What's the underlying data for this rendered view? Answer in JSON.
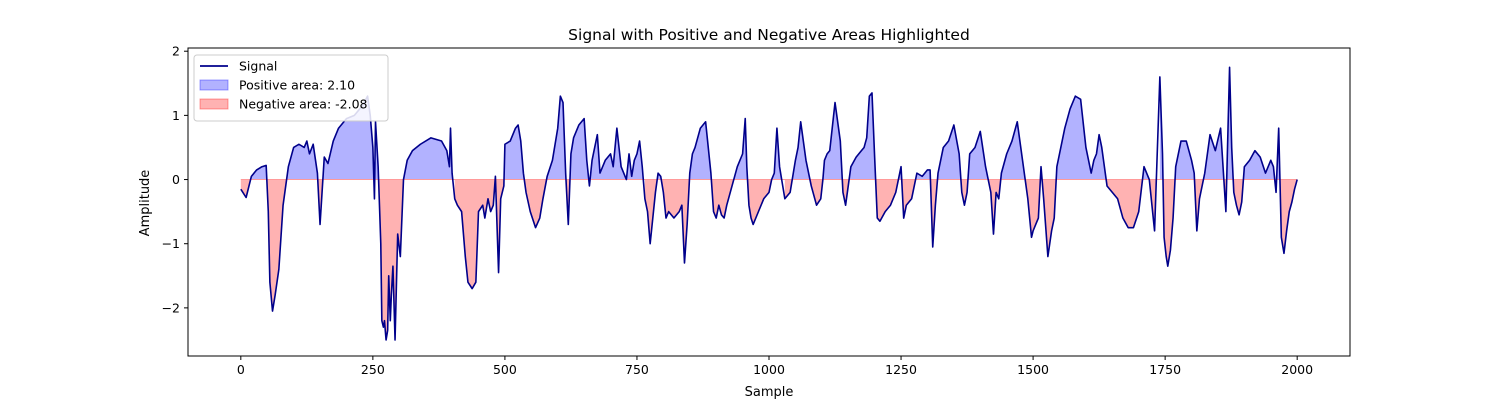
{
  "chart_data": {
    "type": "area",
    "title": "Signal with Positive and Negative Areas Highlighted",
    "xlabel": "Sample",
    "ylabel": "Amplitude",
    "xlim": [
      -100,
      2100
    ],
    "ylim": [
      -2.75,
      2.05
    ],
    "xticks": [
      0,
      250,
      500,
      750,
      1000,
      1250,
      1500,
      1750,
      2000
    ],
    "yticks": [
      -2,
      -1,
      0,
      1,
      2
    ],
    "grid": false,
    "legend_position": "top-left",
    "colors": {
      "signal": "#00008b",
      "positive_fill": "#0000ff",
      "negative_fill": "#ff0000",
      "fill_alpha": 0.3,
      "baseline": "#ff9999"
    },
    "series": [
      {
        "name": "Signal",
        "x": [
          0,
          10,
          20,
          30,
          40,
          48,
          52,
          55,
          60,
          65,
          72,
          80,
          90,
          100,
          110,
          120,
          125,
          130,
          137,
          145,
          150,
          158,
          165,
          175,
          185,
          200,
          215,
          230,
          240,
          245,
          250,
          253,
          255,
          260,
          265,
          267,
          270,
          272,
          275,
          278,
          280,
          283,
          285,
          288,
          292,
          297,
          302,
          308,
          315,
          325,
          340,
          360,
          380,
          390,
          395,
          397,
          400,
          405,
          410,
          418,
          425,
          430,
          438,
          445,
          450,
          458,
          462,
          468,
          473,
          478,
          482,
          488,
          492,
          498,
          500,
          510,
          520,
          525,
          530,
          535,
          540,
          548,
          558,
          566,
          572,
          580,
          590,
          600,
          605,
          610,
          615,
          620,
          625,
          630,
          640,
          650,
          655,
          660,
          665,
          670,
          675,
          680,
          690,
          700,
          705,
          712,
          720,
          730,
          735,
          740,
          745,
          750,
          755,
          760,
          765,
          770,
          775,
          780,
          785,
          790,
          795,
          800,
          805,
          810,
          820,
          830,
          835,
          840,
          845,
          850,
          855,
          860,
          870,
          880,
          890,
          895,
          900,
          905,
          910,
          915,
          920,
          930,
          940,
          950,
          955,
          958,
          962,
          966,
          970,
          980,
          990,
          1000,
          1005,
          1010,
          1015,
          1020,
          1030,
          1040,
          1050,
          1055,
          1060,
          1070,
          1080,
          1090,
          1098,
          1102,
          1105,
          1110,
          1115,
          1125,
          1135,
          1140,
          1145,
          1155,
          1165,
          1175,
          1180,
          1185,
          1190,
          1195,
          1200,
          1205,
          1210,
          1220,
          1230,
          1240,
          1250,
          1255,
          1260,
          1270,
          1280,
          1290,
          1300,
          1305,
          1310,
          1315,
          1320,
          1325,
          1330,
          1340,
          1350,
          1360,
          1365,
          1370,
          1375,
          1380,
          1390,
          1400,
          1410,
          1420,
          1425,
          1430,
          1435,
          1440,
          1450,
          1460,
          1470,
          1480,
          1490,
          1497,
          1500,
          1505,
          1510,
          1515,
          1520,
          1528,
          1535,
          1540,
          1545,
          1550,
          1560,
          1570,
          1580,
          1590,
          1600,
          1610,
          1615,
          1620,
          1625,
          1630,
          1635,
          1640,
          1650,
          1660,
          1670,
          1680,
          1690,
          1700,
          1710,
          1720,
          1730,
          1740,
          1745,
          1748,
          1752,
          1755,
          1760,
          1765,
          1770,
          1780,
          1790,
          1800,
          1805,
          1810,
          1815,
          1825,
          1835,
          1845,
          1855,
          1865,
          1872,
          1876,
          1880,
          1885,
          1890,
          1895,
          1900,
          1910,
          1920,
          1930,
          1940,
          1950,
          1955,
          1960,
          1965,
          1970,
          1975,
          1980,
          1985,
          1990,
          1995,
          2000
        ],
        "y": [
          -0.15,
          -0.28,
          0.05,
          0.15,
          0.2,
          0.22,
          -0.5,
          -1.6,
          -2.05,
          -1.8,
          -1.4,
          -0.4,
          0.2,
          0.5,
          0.55,
          0.5,
          0.6,
          0.4,
          0.55,
          0.1,
          -0.7,
          0.35,
          0.25,
          0.6,
          0.8,
          0.95,
          1.0,
          1.15,
          1.3,
          1.0,
          0.5,
          -0.3,
          0.9,
          0.2,
          -1.0,
          -2.2,
          -2.3,
          -2.2,
          -2.5,
          -2.35,
          -1.5,
          -2.2,
          -1.8,
          -1.35,
          -2.5,
          -0.85,
          -1.2,
          0.0,
          0.3,
          0.45,
          0.55,
          0.65,
          0.6,
          0.45,
          0.2,
          0.8,
          0.1,
          -0.3,
          -0.4,
          -0.5,
          -1.2,
          -1.6,
          -1.7,
          -1.6,
          -0.5,
          -0.4,
          -0.6,
          -0.3,
          -0.5,
          -0.4,
          0.05,
          -1.45,
          -0.3,
          -0.1,
          0.55,
          0.6,
          0.8,
          0.85,
          0.6,
          0.1,
          -0.2,
          -0.5,
          -0.75,
          -0.6,
          -0.3,
          0.05,
          0.3,
          0.8,
          1.3,
          1.2,
          0.1,
          -0.7,
          0.4,
          0.65,
          0.85,
          0.95,
          0.3,
          -0.1,
          0.3,
          0.5,
          0.7,
          0.1,
          0.3,
          0.4,
          0.2,
          0.8,
          0.2,
          0.0,
          0.4,
          0.05,
          0.3,
          0.4,
          0.6,
          0.2,
          -0.3,
          -0.5,
          -1.0,
          -0.6,
          -0.2,
          0.1,
          0.05,
          -0.2,
          -0.6,
          -0.5,
          -0.6,
          -0.5,
          -0.4,
          -1.3,
          -0.7,
          0.1,
          0.4,
          0.5,
          0.8,
          0.9,
          0.1,
          -0.5,
          -0.6,
          -0.4,
          -0.55,
          -0.6,
          -0.4,
          -0.1,
          0.2,
          0.4,
          0.95,
          0.2,
          -0.4,
          -0.6,
          -0.7,
          -0.5,
          -0.3,
          -0.2,
          0.0,
          0.1,
          0.8,
          0.2,
          -0.3,
          -0.2,
          0.3,
          0.5,
          0.9,
          0.3,
          -0.1,
          -0.4,
          -0.3,
          0.0,
          0.3,
          0.4,
          0.45,
          1.2,
          0.6,
          -0.2,
          -0.4,
          0.2,
          0.35,
          0.45,
          0.5,
          0.65,
          1.3,
          1.35,
          0.35,
          -0.6,
          -0.65,
          -0.5,
          -0.4,
          -0.2,
          0.2,
          -0.6,
          -0.4,
          -0.3,
          0.1,
          0.05,
          0.15,
          0.15,
          -1.05,
          -0.4,
          0.1,
          0.3,
          0.5,
          0.6,
          0.85,
          0.4,
          -0.2,
          -0.4,
          -0.2,
          0.4,
          0.5,
          0.75,
          0.2,
          -0.2,
          -0.85,
          -0.2,
          -0.3,
          0.1,
          0.4,
          0.6,
          0.9,
          0.3,
          -0.3,
          -0.9,
          -0.8,
          -0.7,
          -0.6,
          0.2,
          -0.3,
          -1.2,
          -0.8,
          -0.6,
          0.2,
          0.4,
          0.8,
          1.1,
          1.3,
          1.25,
          0.5,
          0.1,
          0.3,
          0.4,
          0.7,
          0.5,
          0.2,
          -0.1,
          -0.2,
          -0.3,
          -0.6,
          -0.75,
          -0.75,
          -0.5,
          0.2,
          0.0,
          -0.8,
          1.6,
          0.4,
          -0.9,
          -1.2,
          -1.35,
          -1.1,
          -0.6,
          0.2,
          0.6,
          0.6,
          0.3,
          0.1,
          -0.8,
          -0.3,
          0.1,
          0.7,
          0.45,
          0.8,
          -0.5,
          1.75,
          0.5,
          -0.2,
          -0.4,
          -0.55,
          -0.35,
          0.2,
          0.3,
          0.45,
          0.35,
          0.1,
          0.3,
          0.2,
          -0.2,
          0.8,
          -0.9,
          -1.15,
          -0.8,
          -0.5,
          -0.35,
          -0.15,
          0.0
        ]
      }
    ],
    "legend": [
      {
        "label": "Signal",
        "kind": "line"
      },
      {
        "label": "Positive area: 2.10",
        "kind": "positive"
      },
      {
        "label": "Negative area: -2.08",
        "kind": "negative"
      }
    ]
  }
}
